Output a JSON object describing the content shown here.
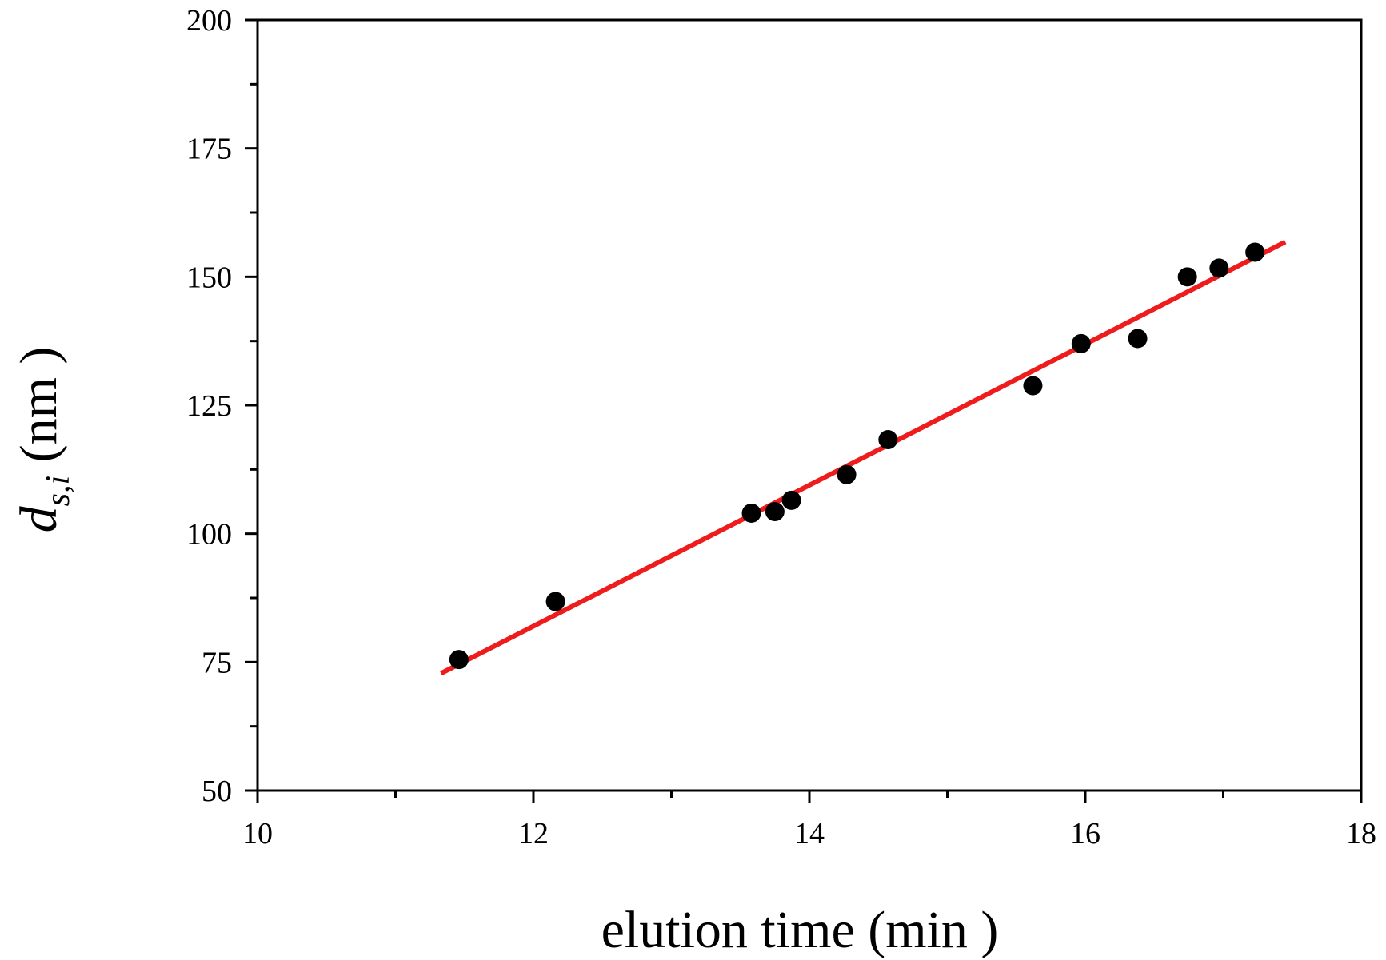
{
  "chart_data": {
    "type": "scatter",
    "title": "",
    "xlabel": "elution time (min )",
    "ylabel": {
      "symbol": "d",
      "subscript": "s,i",
      "unit": " (nm )"
    },
    "xlim": [
      10,
      18
    ],
    "ylim": [
      50,
      200
    ],
    "x_ticks": [
      10,
      12,
      14,
      16,
      18
    ],
    "y_ticks": [
      50,
      75,
      100,
      125,
      150,
      175,
      200
    ],
    "x_tick_labels": [
      "10",
      "12",
      "14",
      "16",
      "18"
    ],
    "y_tick_labels": [
      "50",
      "75",
      "100",
      "125",
      "150",
      "175",
      "200"
    ],
    "x_minor_step": 1,
    "y_minor_step": 12.5,
    "grid": false,
    "legend": "none",
    "series": [
      {
        "kind": "scatter",
        "color": "#000000",
        "points": [
          [
            11.46,
            75.5
          ],
          [
            12.16,
            86.8
          ],
          [
            13.58,
            104.0
          ],
          [
            13.75,
            104.3
          ],
          [
            13.87,
            106.5
          ],
          [
            14.27,
            111.5
          ],
          [
            14.57,
            118.3
          ],
          [
            15.62,
            128.8
          ],
          [
            15.97,
            137.0
          ],
          [
            16.38,
            138.0
          ],
          [
            16.74,
            150.0
          ],
          [
            16.97,
            151.7
          ],
          [
            17.23,
            154.8
          ]
        ]
      },
      {
        "kind": "line",
        "color": "#ee1c1c",
        "points": [
          [
            11.33,
            72.8
          ],
          [
            17.45,
            156.8
          ]
        ]
      }
    ]
  }
}
